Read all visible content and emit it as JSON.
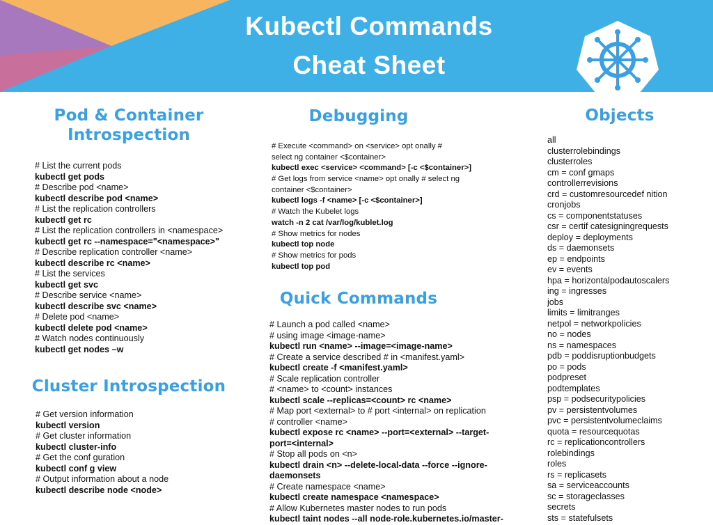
{
  "header": {
    "title_line1": "Kubectl Commands",
    "title_line2": "Cheat Sheet",
    "background_color": "#3fb0e6",
    "logo": "kubernetes-helm-wheel-icon"
  },
  "sections": {
    "pod": {
      "title_line1": "Pod & Container",
      "title_line2": "Introspection",
      "lines": [
        {
          "t": "c",
          "text": "# List the current pods"
        },
        {
          "t": "b",
          "text": "kubectl get pods"
        },
        {
          "t": "c",
          "text": "# Describe pod <name>"
        },
        {
          "t": "b",
          "text": "kubectl describe pod <name>"
        },
        {
          "t": "c",
          "text": "# List the replication controllers"
        },
        {
          "t": "b",
          "text": "kubectl get rc"
        },
        {
          "t": "c",
          "text": "# List the replication controllers in <namespace>"
        },
        {
          "t": "b",
          "text": "kubectl get rc --namespace=\"<namespace>\""
        },
        {
          "t": "c",
          "text": "# Describe replication controller <name>"
        },
        {
          "t": "b",
          "text": "kubectl describe rc <name>"
        },
        {
          "t": "c",
          "text": "# List the services"
        },
        {
          "t": "b",
          "text": "kubectl get svc"
        },
        {
          "t": "c",
          "text": "# Describe service <name>"
        },
        {
          "t": "b",
          "text": "kubectl describe svc <name>"
        },
        {
          "t": "c",
          "text": "# Delete pod <name>"
        },
        {
          "t": "b",
          "text": "kubectl delete pod <name>"
        },
        {
          "t": "c",
          "text": "# Watch nodes continuously"
        },
        {
          "t": "b",
          "text": "kubectl get nodes –w"
        }
      ]
    },
    "cluster": {
      "title": "Cluster Introspection",
      "lines": [
        {
          "t": "c",
          "text": "# Get version information"
        },
        {
          "t": "b",
          "text": "kubectl version"
        },
        {
          "t": "c",
          "text": "# Get cluster information"
        },
        {
          "t": "b",
          "text": "kubectl cluster-info"
        },
        {
          "t": "c",
          "text": "# Get the conf guration"
        },
        {
          "t": "b",
          "text": "kubectl conf g view"
        },
        {
          "t": "c",
          "text": "# Output information about a node"
        },
        {
          "t": "b",
          "text": "kubectl describe node <node>"
        }
      ]
    },
    "debugging": {
      "title": "Debugging",
      "lines": [
        {
          "t": "c",
          "text": "# Execute <command> on <service> opt onally #"
        },
        {
          "t": "c",
          "text": "select ng container <$container>"
        },
        {
          "t": "b",
          "text": "kubectl exec <service> <command> [-c <$container>]"
        },
        {
          "t": "c",
          "text": "# Get logs from service <name> opt onally # select ng"
        },
        {
          "t": "c",
          "text": "container <$container>"
        },
        {
          "t": "b",
          "text": "kubectl logs -f <name> [-c <$container>]"
        },
        {
          "t": "c",
          "text": "# Watch the Kubelet logs"
        },
        {
          "t": "b",
          "text": "watch -n 2 cat /var/log/kublet.log"
        },
        {
          "t": "c",
          "text": "# Show metrics for nodes"
        },
        {
          "t": "b",
          "text": "kubectl top node"
        },
        {
          "t": "c",
          "text": "# Show metrics for pods"
        },
        {
          "t": "b",
          "text": "kubectl top pod"
        }
      ]
    },
    "quick": {
      "title": "Quick Commands",
      "lines": [
        {
          "t": "c",
          "text": "# Launch a pod called <name>"
        },
        {
          "t": "c",
          "text": "# using image <image-name>"
        },
        {
          "t": "b",
          "text": "kubectl run <name> --image=<image-name>"
        },
        {
          "t": "c",
          "text": "# Create a service described # in <manifest.yaml>"
        },
        {
          "t": "b",
          "text": "kubectl create -f <manifest.yaml>"
        },
        {
          "t": "c",
          "text": "# Scale replication controller"
        },
        {
          "t": "c",
          "text": "# <name> to <count> instances"
        },
        {
          "t": "b",
          "text": "kubectl scale --replicas=<count> rc <name>"
        },
        {
          "t": "c",
          "text": "# Map port <external> to # port <internal> on replication"
        },
        {
          "t": "c",
          "text": "# controller <name>"
        },
        {
          "t": "b",
          "text": "kubectl expose rc <name> --port=<external> --target-"
        },
        {
          "t": "b",
          "text": "port=<internal>"
        },
        {
          "t": "c",
          "text": "# Stop all pods on <n>"
        },
        {
          "t": "b",
          "text": "kubectl drain <n> --delete-local-data --force --ignore-"
        },
        {
          "t": "b",
          "text": "daemonsets"
        },
        {
          "t": "c",
          "text": "# Create namespace <name>"
        },
        {
          "t": "b",
          "text": "kubectl create namespace <namespace>"
        },
        {
          "t": "c",
          "text": "# Allow Kubernetes master nodes to run pods"
        },
        {
          "t": "b",
          "text": "kubectl taint nodes --all node-role.kubernetes.io/master-"
        }
      ]
    },
    "objects": {
      "title": "Objects",
      "lines": [
        {
          "t": "c",
          "text": "all"
        },
        {
          "t": "c",
          "text": "clusterrolebindings"
        },
        {
          "t": "c",
          "text": "clusterroles"
        },
        {
          "t": "c",
          "text": "cm = conf gmaps"
        },
        {
          "t": "c",
          "text": "controllerrevisions"
        },
        {
          "t": "c",
          "text": "crd = customresourcedef nition"
        },
        {
          "t": "c",
          "text": "cronjobs"
        },
        {
          "t": "c",
          "text": "cs = componentstatuses"
        },
        {
          "t": "c",
          "text": "csr = certif catesigningrequests"
        },
        {
          "t": "c",
          "text": "deploy = deployments"
        },
        {
          "t": "c",
          "text": "ds = daemonsets"
        },
        {
          "t": "c",
          "text": "ep = endpoints"
        },
        {
          "t": "c",
          "text": "ev = events"
        },
        {
          "t": "c",
          "text": "hpa = horizontalpodautoscalers"
        },
        {
          "t": "c",
          "text": "ing = ingresses"
        },
        {
          "t": "c",
          "text": "jobs"
        },
        {
          "t": "c",
          "text": "limits = limitranges"
        },
        {
          "t": "c",
          "text": "netpol = networkpolicies"
        },
        {
          "t": "c",
          "text": "no = nodes"
        },
        {
          "t": "c",
          "text": "ns = namespaces"
        },
        {
          "t": "c",
          "text": "pdb = poddisruptionbudgets"
        },
        {
          "t": "c",
          "text": "po = pods"
        },
        {
          "t": "c",
          "text": "podpreset"
        },
        {
          "t": "c",
          "text": "podtemplates"
        },
        {
          "t": "c",
          "text": "psp = podsecuritypolicies"
        },
        {
          "t": "c",
          "text": "pv = persistentvolumes"
        },
        {
          "t": "c",
          "text": "pvc = persistentvolumeclaims"
        },
        {
          "t": "c",
          "text": "quota = resourcequotas"
        },
        {
          "t": "c",
          "text": "rc = replicationcontrollers"
        },
        {
          "t": "c",
          "text": "rolebindings"
        },
        {
          "t": "c",
          "text": "roles"
        },
        {
          "t": "c",
          "text": "rs = replicasets"
        },
        {
          "t": "c",
          "text": "sa = serviceaccounts"
        },
        {
          "t": "c",
          "text": "sc = storageclasses"
        },
        {
          "t": "c",
          "text": "secrets"
        },
        {
          "t": "c",
          "text": "sts = statefulsets"
        }
      ]
    }
  },
  "colors": {
    "section_title": "#3aa0e2",
    "header_blue": "#3fb0e6",
    "header_orange": "#f8b560",
    "header_purple": "#a778bd",
    "header_pink": "#d56a8c"
  }
}
